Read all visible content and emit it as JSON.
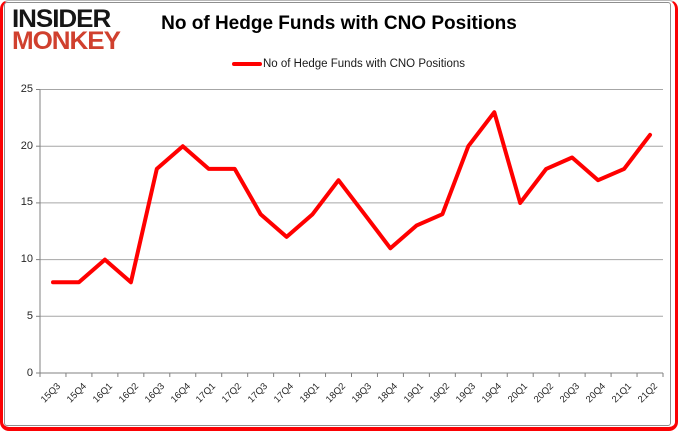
{
  "logo": {
    "line1": "INSIDER",
    "line2": "MONKEY"
  },
  "header": {
    "title": "No of Hedge Funds with CNO Positions"
  },
  "legend": {
    "label": "No of Hedge Funds with CNO Positions"
  },
  "colors": {
    "line": "#ff0000",
    "grid": "#a6a6a6",
    "axis": "#808080",
    "frame_red": "#fb0204",
    "logo_black": "#161616",
    "logo_red": "#d0402e"
  },
  "chart_data": {
    "type": "line",
    "title": "No of Hedge Funds with CNO Positions",
    "categories": [
      "15Q3",
      "15Q4",
      "16Q1",
      "16Q2",
      "16Q3",
      "16Q4",
      "17Q1",
      "17Q2",
      "17Q3",
      "17Q4",
      "18Q1",
      "18Q2",
      "18Q3",
      "18Q4",
      "19Q1",
      "19Q2",
      "19Q3",
      "19Q4",
      "20Q1",
      "20Q2",
      "20Q3",
      "20Q4",
      "21Q1",
      "21Q2"
    ],
    "series": [
      {
        "name": "No of Hedge Funds with CNO Positions",
        "color": "#ff0000",
        "values": [
          8,
          8,
          10,
          8,
          18,
          20,
          18,
          18,
          14,
          12,
          14,
          17,
          14,
          11,
          13,
          14,
          20,
          23,
          15,
          18,
          19,
          17,
          18,
          21
        ]
      }
    ],
    "xlabel": "",
    "ylabel": "",
    "ylim": [
      0,
      25
    ],
    "yticks": [
      0,
      5,
      10,
      15,
      20,
      25
    ],
    "grid": true,
    "legend_position": "top-center"
  }
}
